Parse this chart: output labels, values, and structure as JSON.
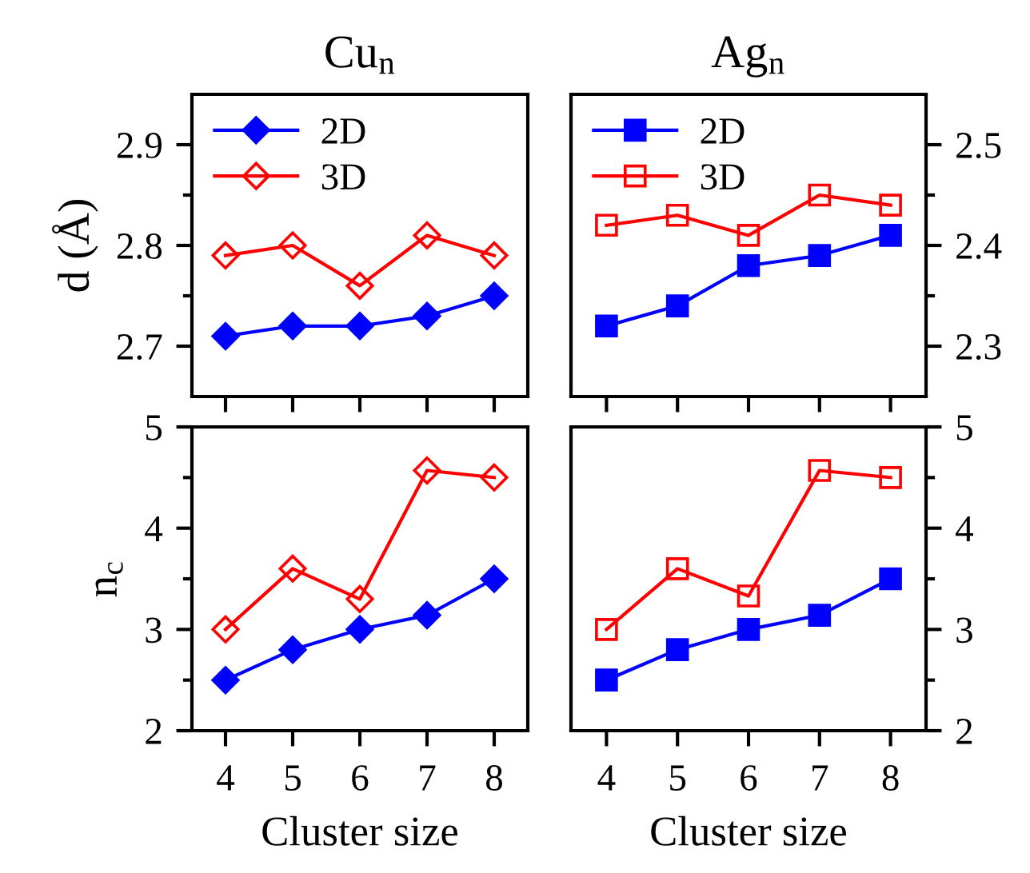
{
  "chart_data": [
    {
      "type": "line",
      "title": "Cu$_{n}$",
      "ylabel": "d (Å)",
      "x": [
        4,
        5,
        6,
        7,
        8
      ],
      "xlim": [
        3.5,
        8.5
      ],
      "xticks": [
        4,
        5,
        6,
        7,
        8
      ],
      "ylim": [
        2.65,
        2.95
      ],
      "yticks": [
        2.7,
        {
          "value": 2.75,
          "label": null
        },
        2.8,
        {
          "value": 2.85,
          "label": null
        },
        2.9
      ],
      "tick_labels": "y",
      "marker": "diamond",
      "line_style": "solid",
      "legend": "top left",
      "grid": false,
      "series": [
        {
          "name": "2D",
          "color": "#0000ff",
          "values": [
            2.71,
            2.72,
            2.72,
            2.73,
            2.75
          ]
        },
        {
          "name": "3D",
          "color": "#ff0000",
          "values": [
            2.79,
            2.8,
            2.76,
            2.81,
            2.79
          ]
        }
      ]
    },
    {
      "type": "line",
      "title": "Ag$_{n}$",
      "x": [
        4,
        5,
        6,
        7,
        8
      ],
      "xlim": [
        3.5,
        8.5
      ],
      "xticks": [
        4,
        5,
        6,
        7,
        8
      ],
      "y2lim": [
        2.25,
        2.55
      ],
      "y2ticks": [
        2.3,
        {
          "value": 2.35,
          "label": null
        },
        2.4,
        {
          "value": 2.45,
          "label": null
        },
        2.5
      ],
      "tick_labels": "y",
      "marker": "square",
      "line_style": "solid",
      "legend": "top left",
      "grid": false,
      "series": [
        {
          "name": "2D",
          "color": "#0000ff",
          "axis": "y2",
          "values": [
            2.32,
            2.34,
            2.38,
            2.39,
            2.41
          ]
        },
        {
          "name": "3D",
          "color": "#ff0000",
          "axis": "y2",
          "values": [
            2.42,
            2.43,
            2.41,
            2.45,
            2.44
          ]
        }
      ]
    },
    {
      "type": "line",
      "ylabel": "n$_{c}$",
      "xlabel": "Cluster size",
      "x": [
        4,
        5,
        6,
        7,
        8
      ],
      "xlim": [
        3.5,
        8.5
      ],
      "xticks": [
        4,
        5,
        6,
        7,
        8
      ],
      "ylim": [
        2,
        5
      ],
      "yticks": [
        2,
        {
          "value": 2.5,
          "label": null
        },
        3,
        {
          "value": 3.5,
          "label": null
        },
        4,
        {
          "value": 4.5,
          "label": null
        },
        5
      ],
      "marker": "diamond",
      "line_style": "solid",
      "grid": false,
      "series": [
        {
          "color": "#0000ff",
          "values": [
            2.5,
            2.8,
            3.0,
            3.14,
            3.5
          ]
        },
        {
          "color": "#ff0000",
          "values": [
            3.0,
            3.6,
            3.3,
            4.57,
            4.5
          ]
        }
      ]
    },
    {
      "type": "line",
      "xlabel": "Cluster size",
      "x": [
        4,
        5,
        6,
        7,
        8
      ],
      "xlim": [
        3.5,
        8.5
      ],
      "xticks": [
        4,
        5,
        6,
        7,
        8
      ],
      "y2lim": [
        2,
        5
      ],
      "y2ticks": [
        2,
        {
          "value": 2.5,
          "label": null
        },
        3,
        {
          "value": 3.5,
          "label": null
        },
        4,
        {
          "value": 4.5,
          "label": null
        },
        5
      ],
      "marker": "square",
      "line_style": "solid",
      "grid": false,
      "series": [
        {
          "color": "#0000ff",
          "axis": "y2",
          "values": [
            2.5,
            2.8,
            3.0,
            3.14,
            3.5
          ]
        },
        {
          "color": "#ff0000",
          "axis": "y2",
          "values": [
            3.0,
            3.6,
            3.33,
            4.57,
            4.5
          ]
        }
      ]
    }
  ]
}
